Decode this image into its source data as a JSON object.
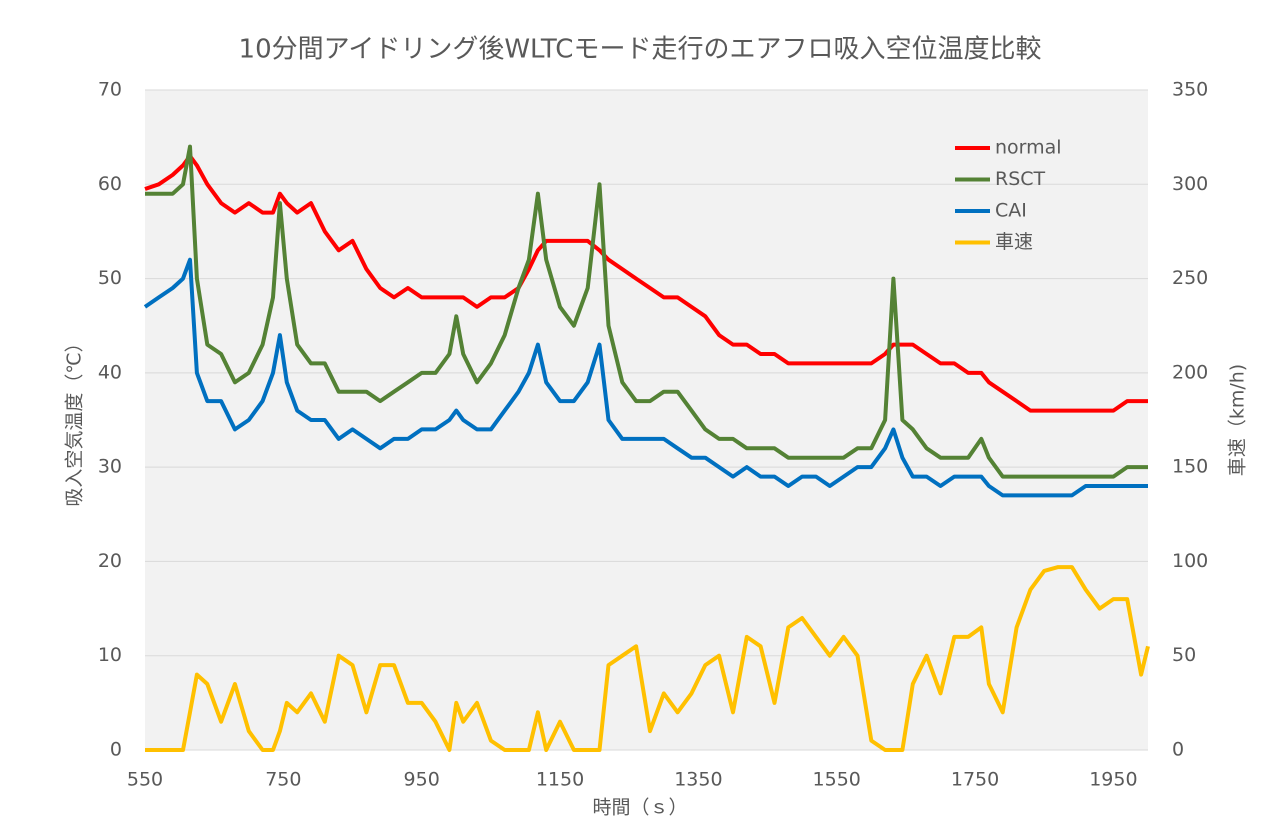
{
  "chart_data": {
    "type": "line",
    "title": "10分間アイドリング後WLTCモード走行のエアフロ吸入空位温度比較",
    "x_label": "時間（ｓ）",
    "y_label": "吸入空気温度（℃）",
    "y2_label": "車速（km/h)",
    "x": [
      550,
      570,
      590,
      605,
      615,
      625,
      640,
      660,
      680,
      700,
      720,
      735,
      745,
      755,
      770,
      790,
      810,
      830,
      850,
      870,
      890,
      910,
      930,
      950,
      970,
      990,
      1000,
      1010,
      1030,
      1050,
      1070,
      1090,
      1105,
      1118,
      1130,
      1150,
      1170,
      1190,
      1207,
      1220,
      1240,
      1260,
      1280,
      1300,
      1320,
      1340,
      1360,
      1380,
      1400,
      1420,
      1440,
      1460,
      1480,
      1500,
      1520,
      1540,
      1560,
      1580,
      1600,
      1620,
      1632,
      1645,
      1660,
      1680,
      1700,
      1720,
      1740,
      1759,
      1770,
      1790,
      1810,
      1830,
      1850,
      1870,
      1890,
      1910,
      1930,
      1950,
      1970,
      1990,
      2000
    ],
    "series": [
      {
        "name": "normal",
        "color": "#ff0000",
        "values": [
          59.5,
          60,
          61,
          62,
          63,
          62,
          60,
          58,
          57,
          58,
          57,
          57,
          59,
          58,
          57,
          58,
          55,
          53,
          54,
          51,
          49,
          48,
          49,
          48,
          48,
          48,
          48,
          48,
          47,
          48,
          48,
          49,
          51,
          53,
          54,
          54,
          54,
          54,
          53,
          52,
          51,
          50,
          49,
          48,
          48,
          47,
          46,
          44,
          43,
          43,
          42,
          42,
          41,
          41,
          41,
          41,
          41,
          41,
          41,
          42,
          43,
          43,
          43,
          42,
          41,
          41,
          40,
          40,
          39,
          38,
          37,
          36,
          36,
          36,
          36,
          36,
          36,
          36,
          37,
          37,
          37
        ]
      },
      {
        "name": "RSCT",
        "color": "#548235",
        "values": [
          59,
          59,
          59,
          60,
          64,
          50,
          43,
          42,
          39,
          40,
          43,
          48,
          58,
          50,
          43,
          41,
          41,
          38,
          38,
          38,
          37,
          38,
          39,
          40,
          40,
          42,
          46,
          42,
          39,
          41,
          44,
          49,
          52,
          59,
          52,
          47,
          45,
          49,
          60,
          45,
          39,
          37,
          37,
          38,
          38,
          36,
          34,
          33,
          33,
          32,
          32,
          32,
          31,
          31,
          31,
          31,
          31,
          32,
          32,
          35,
          50,
          35,
          34,
          32,
          31,
          31,
          31,
          33,
          31,
          29,
          29,
          29,
          29,
          29,
          29,
          29,
          29,
          29,
          30,
          30,
          30
        ]
      },
      {
        "name": "CAI",
        "color": "#0070c0",
        "values": [
          47,
          48,
          49,
          50,
          52,
          40,
          37,
          37,
          34,
          35,
          37,
          40,
          44,
          39,
          36,
          35,
          35,
          33,
          34,
          33,
          32,
          33,
          33,
          34,
          34,
          35,
          36,
          35,
          34,
          34,
          36,
          38,
          40,
          43,
          39,
          37,
          37,
          39,
          43,
          35,
          33,
          33,
          33,
          33,
          32,
          31,
          31,
          30,
          29,
          30,
          29,
          29,
          28,
          29,
          29,
          28,
          29,
          30,
          30,
          32,
          34,
          31,
          29,
          29,
          28,
          29,
          29,
          29,
          28,
          27,
          27,
          27,
          27,
          27,
          27,
          28,
          28,
          28,
          28,
          28,
          28
        ]
      },
      {
        "name": "車速",
        "color": "#ffc000",
        "axis": "y2",
        "values": [
          0,
          0,
          0,
          0,
          20,
          40,
          35,
          15,
          35,
          10,
          0,
          0,
          10,
          25,
          20,
          30,
          15,
          50,
          45,
          20,
          45,
          45,
          25,
          25,
          15,
          0,
          25,
          15,
          25,
          5,
          0,
          0,
          0,
          20,
          0,
          15,
          0,
          0,
          0,
          45,
          50,
          55,
          10,
          30,
          20,
          30,
          45,
          50,
          20,
          60,
          55,
          25,
          65,
          70,
          60,
          50,
          60,
          50,
          5,
          0,
          0,
          0,
          35,
          50,
          30,
          60,
          60,
          65,
          35,
          20,
          65,
          85,
          95,
          97,
          97,
          85,
          75,
          80,
          80,
          40,
          55
        ]
      }
    ],
    "xlim": [
      550,
      2000
    ],
    "xticks": [
      550,
      750,
      950,
      1150,
      1350,
      1550,
      1750,
      1950
    ],
    "ylim": [
      0,
      70
    ],
    "yticks": [
      0,
      10,
      20,
      30,
      40,
      50,
      60,
      70
    ],
    "y2lim": [
      0,
      350
    ],
    "y2ticks": [
      0,
      50,
      100,
      150,
      200,
      250,
      300,
      350
    ],
    "grid": true,
    "legend": "upper right"
  }
}
